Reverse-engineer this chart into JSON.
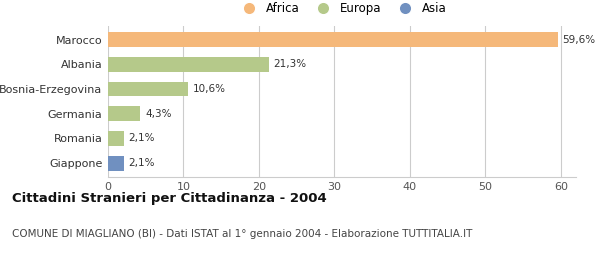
{
  "categories": [
    "Marocco",
    "Albania",
    "Bosnia-Erzegovina",
    "Germania",
    "Romania",
    "Giappone"
  ],
  "values": [
    59.6,
    21.3,
    10.6,
    4.3,
    2.1,
    2.1
  ],
  "labels": [
    "59,6%",
    "21,3%",
    "10,6%",
    "4,3%",
    "2,1%",
    "2,1%"
  ],
  "colors": [
    "#f5b87a",
    "#b5c98a",
    "#b5c98a",
    "#b5c98a",
    "#b5c98a",
    "#7090c0"
  ],
  "legend_labels": [
    "Africa",
    "Europa",
    "Asia"
  ],
  "legend_colors": [
    "#f5b87a",
    "#b5c98a",
    "#7090c0"
  ],
  "xlim": [
    0,
    62
  ],
  "xticks": [
    0,
    10,
    20,
    30,
    40,
    50,
    60
  ],
  "title": "Cittadini Stranieri per Cittadinanza - 2004",
  "subtitle": "COMUNE DI MIAGLIANO (BI) - Dati ISTAT al 1° gennaio 2004 - Elaborazione TUTTITALIA.IT",
  "title_fontsize": 9.5,
  "subtitle_fontsize": 7.5,
  "bar_height": 0.6,
  "background_color": "#ffffff",
  "grid_color": "#cccccc"
}
